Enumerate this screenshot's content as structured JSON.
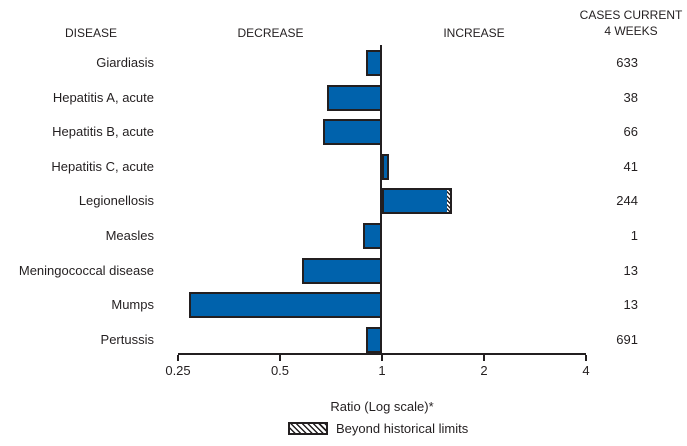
{
  "colors": {
    "bar_fill": "#0062ac",
    "bar_border": "#231f20",
    "text": "#231f20"
  },
  "chart_data": {
    "type": "bar",
    "orientation": "horizontal",
    "title": "",
    "xlabel": "Ratio (Log scale)*",
    "x_scale": "log",
    "xlim": [
      0.25,
      4
    ],
    "baseline": 1,
    "x_ticks": [
      "0.25",
      "0.5",
      "1",
      "2",
      "4"
    ],
    "grid": false,
    "legend_position": "bottom",
    "legend": [
      {
        "label": "Beyond historical limits",
        "swatch": "hatched"
      }
    ],
    "column_headers": {
      "disease": "DISEASE",
      "decrease": "DECREASE",
      "increase": "INCREASE",
      "cases_line1": "CASES CURRENT",
      "cases_line2": "4 WEEKS"
    },
    "rows": [
      {
        "disease": "Giardiasis",
        "ratio": 0.9,
        "cases": "633",
        "beyond_historical_limits": false
      },
      {
        "disease": "Hepatitis A, acute",
        "ratio": 0.69,
        "cases": "38",
        "beyond_historical_limits": false
      },
      {
        "disease": "Hepatitis B, acute",
        "ratio": 0.67,
        "cases": "66",
        "beyond_historical_limits": false
      },
      {
        "disease": "Hepatitis C, acute",
        "ratio": 1.05,
        "cases": "41",
        "beyond_historical_limits": false
      },
      {
        "disease": "Legionellosis",
        "ratio": 1.61,
        "solid_ratio": 1.56,
        "cases": "244",
        "beyond_historical_limits": true
      },
      {
        "disease": "Measles",
        "ratio": 0.88,
        "cases": "1",
        "beyond_historical_limits": false
      },
      {
        "disease": "Meningococcal disease",
        "ratio": 0.58,
        "cases": "13",
        "beyond_historical_limits": false
      },
      {
        "disease": "Mumps",
        "ratio": 0.27,
        "cases": "13",
        "beyond_historical_limits": false
      },
      {
        "disease": "Pertussis",
        "ratio": 0.9,
        "cases": "691",
        "beyond_historical_limits": false
      }
    ]
  }
}
